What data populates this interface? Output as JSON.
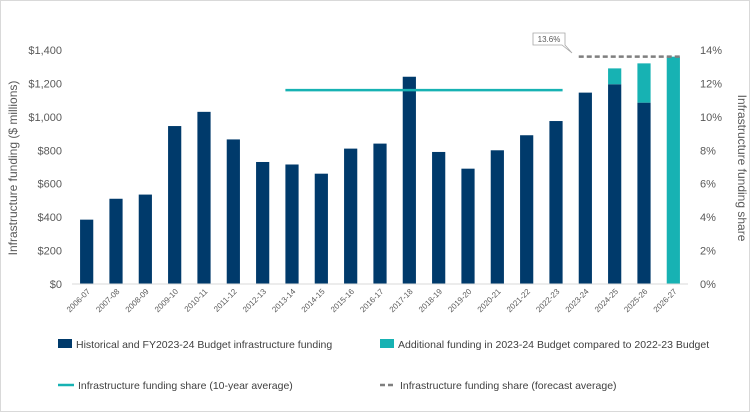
{
  "chart_data": {
    "type": "bar",
    "categories": [
      "2006-07",
      "2007-08",
      "2008-09",
      "2009-10",
      "2010-11",
      "2011-12",
      "2012-13",
      "2013-14",
      "2014-15",
      "2015-16",
      "2016-17",
      "2017-18",
      "2018-19",
      "2019-20",
      "2020-21",
      "2021-22",
      "2022-23",
      "2023-24",
      "2024-25",
      "2025-26",
      "2026-27"
    ],
    "series": [
      {
        "name": "Historical and FY2023-24 Budget infrastructure funding",
        "color": "#003a6b",
        "values": [
          385,
          510,
          535,
          945,
          1030,
          865,
          730,
          715,
          660,
          810,
          840,
          1240,
          790,
          690,
          800,
          890,
          975,
          1145,
          1195,
          1085,
          0
        ]
      },
      {
        "name": "Additional funding in 2023-24 Budget compared to 2022-23 Budget",
        "color": "#17b2b3",
        "values": [
          0,
          0,
          0,
          0,
          0,
          0,
          0,
          0,
          0,
          0,
          0,
          0,
          0,
          0,
          0,
          0,
          0,
          0,
          95,
          235,
          1360
        ]
      }
    ],
    "lines": [
      {
        "name": "Infrastructure funding share (10-year average)",
        "color": "#17b2b3",
        "style": "solid",
        "from": "2013-14",
        "to": "2022-23",
        "value": 11.6
      },
      {
        "name": "Infrastructure funding share (forecast average)",
        "color": "#7f7f7f",
        "style": "dashed",
        "from": "2023-24",
        "to": "2026-27",
        "value": 13.6
      }
    ],
    "callout": "13.6%",
    "ylabel": "Infrastructure funding ($ millions)",
    "y2label": "Infrastructure funding  share",
    "ylim": [
      0,
      1400
    ],
    "y2lim": [
      0,
      14
    ],
    "yticks": [
      "$0",
      "$200",
      "$400",
      "$600",
      "$800",
      "$1,000",
      "$1,200",
      "$1,400"
    ],
    "y2ticks": [
      "0%",
      "2%",
      "4%",
      "6%",
      "8%",
      "10%",
      "12%",
      "14%"
    ],
    "grid": false,
    "legend_position": "bottom"
  }
}
